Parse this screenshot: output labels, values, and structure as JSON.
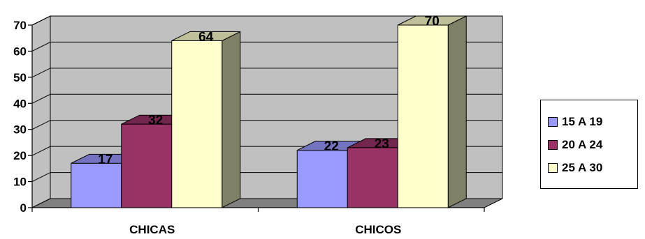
{
  "chart_data": {
    "type": "bar",
    "style": "3d-clustered-column",
    "categories": [
      "CHICAS",
      "CHICOS"
    ],
    "series": [
      {
        "name": "15 A 19",
        "values": [
          17,
          22
        ],
        "color": "#9999FF"
      },
      {
        "name": "20 A 24",
        "values": [
          32,
          23
        ],
        "color": "#993366"
      },
      {
        "name": "25 A 30",
        "values": [
          64,
          70
        ],
        "color": "#FFFFCC"
      }
    ],
    "title": "",
    "xlabel": "",
    "ylabel": "",
    "ylim": [
      0,
      70
    ],
    "yticks": [
      0,
      10,
      20,
      30,
      40,
      50,
      60,
      70
    ],
    "grid": true,
    "wall_color": "#C0C0C0",
    "floor_color": "#808080",
    "legend_position": "right"
  }
}
